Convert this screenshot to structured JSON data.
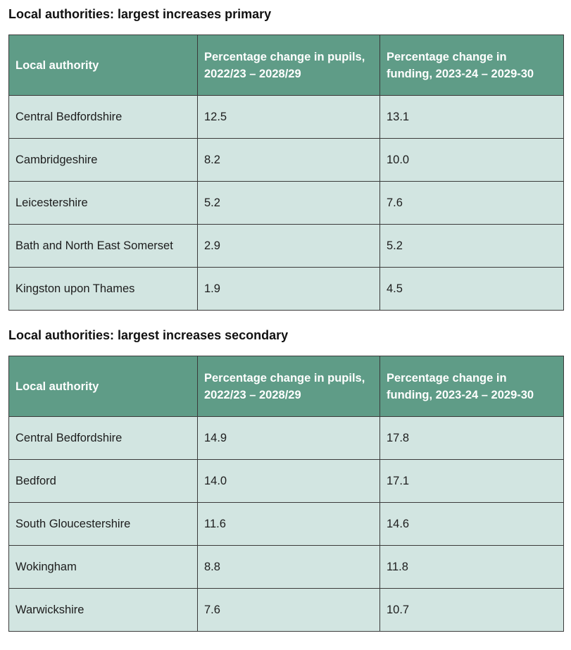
{
  "primary": {
    "title": "Local authorities: largest increases primary",
    "headers": [
      "Local authority",
      "Percentage change in pupils,\n2022/23 – 2028/29",
      "Percentage change in\nfunding, 2023-24 – 2029-30"
    ],
    "rows": [
      [
        "Central Bedfordshire",
        "12.5",
        "13.1"
      ],
      [
        "Cambridgeshire",
        "8.2",
        "10.0"
      ],
      [
        "Leicestershire",
        "5.2",
        "7.6"
      ],
      [
        "Bath and North East Somerset",
        "2.9",
        "5.2"
      ],
      [
        "Kingston upon Thames",
        "1.9",
        "4.5"
      ]
    ]
  },
  "secondary": {
    "title": "Local authorities: largest increases secondary",
    "headers": [
      "Local authority",
      "Percentage change in pupils,\n2022/23 – 2028/29",
      "Percentage change in\nfunding, 2023-24 – 2029-30"
    ],
    "rows": [
      [
        "Central Bedfordshire",
        "14.9",
        "17.8"
      ],
      [
        "Bedford",
        "14.0",
        "17.1"
      ],
      [
        "South Gloucestershire",
        "11.6",
        "14.6"
      ],
      [
        "Wokingham",
        "8.8",
        "11.8"
      ],
      [
        "Warwickshire",
        "7.6",
        "10.7"
      ]
    ]
  },
  "colors": {
    "header_bg": "#5f9c87",
    "header_text": "#ffffff",
    "cell_bg": "#d2e5e1",
    "border": "#3a3a3a"
  }
}
